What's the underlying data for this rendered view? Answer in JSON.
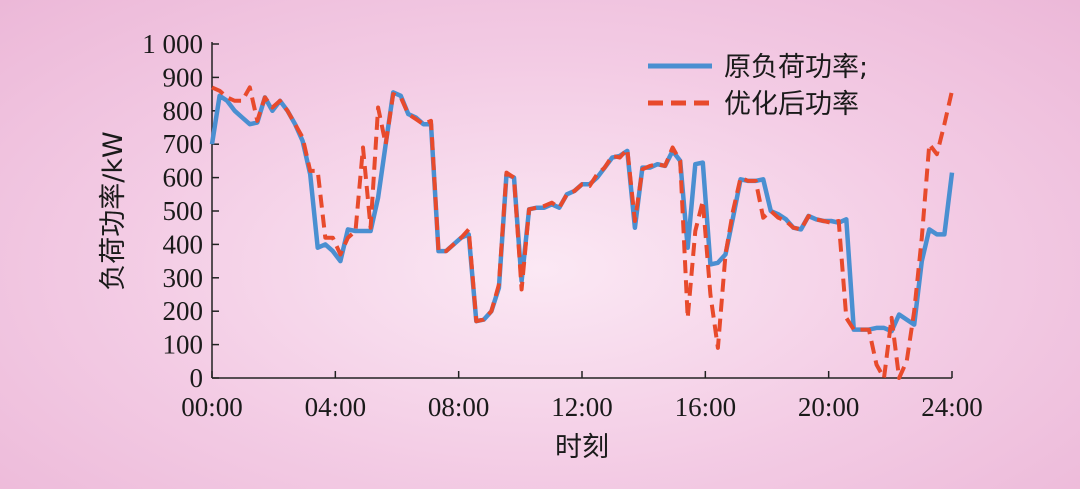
{
  "chart_data": {
    "type": "line",
    "xlabel": "时刻",
    "ylabel": "负荷功率/kW",
    "xlim": [
      0,
      24
    ],
    "ylim": [
      0,
      1000
    ],
    "x_ticks": [
      0,
      4,
      8,
      12,
      16,
      20,
      24
    ],
    "x_tick_labels": [
      "00:00",
      "04:00",
      "08:00",
      "12:00",
      "16:00",
      "20:00",
      "24:00"
    ],
    "y_ticks": [
      0,
      100,
      200,
      300,
      400,
      500,
      600,
      700,
      800,
      900,
      1000
    ],
    "y_tick_labels": [
      "0",
      "100",
      "200",
      "300",
      "400",
      "500",
      "600",
      "700",
      "800",
      "900",
      "1 000"
    ],
    "grid": false,
    "legend_position": "top-right",
    "series": [
      {
        "name": "原负荷功率;",
        "color": "#4a8fd1",
        "style": "solid",
        "points": [
          [
            0.0,
            700
          ],
          [
            0.25,
            845
          ],
          [
            0.5,
            830
          ],
          [
            0.75,
            800
          ],
          [
            1.0,
            780
          ],
          [
            1.25,
            760
          ],
          [
            1.5,
            765
          ],
          [
            1.75,
            840
          ],
          [
            2.0,
            800
          ],
          [
            2.25,
            830
          ],
          [
            2.5,
            800
          ],
          [
            2.75,
            760
          ],
          [
            3.0,
            710
          ],
          [
            3.25,
            610
          ],
          [
            3.5,
            390
          ],
          [
            3.75,
            400
          ],
          [
            4.0,
            380
          ],
          [
            4.25,
            350
          ],
          [
            4.5,
            445
          ],
          [
            4.75,
            440
          ],
          [
            5.0,
            440
          ],
          [
            5.25,
            440
          ],
          [
            5.5,
            540
          ],
          [
            5.75,
            700
          ],
          [
            6.0,
            855
          ],
          [
            6.25,
            845
          ],
          [
            6.5,
            790
          ],
          [
            6.75,
            780
          ],
          [
            7.0,
            760
          ],
          [
            7.25,
            760
          ],
          [
            7.5,
            380
          ],
          [
            7.75,
            380
          ],
          [
            8.0,
            400
          ],
          [
            8.25,
            420
          ],
          [
            8.5,
            430
          ],
          [
            8.75,
            170
          ],
          [
            9.0,
            175
          ],
          [
            9.25,
            200
          ],
          [
            9.5,
            270
          ],
          [
            9.75,
            610
          ],
          [
            10.0,
            600
          ],
          [
            10.25,
            290
          ],
          [
            10.5,
            505
          ],
          [
            10.75,
            510
          ],
          [
            11.0,
            510
          ],
          [
            11.25,
            520
          ],
          [
            11.5,
            510
          ],
          [
            11.75,
            550
          ],
          [
            12.0,
            560
          ],
          [
            12.25,
            580
          ],
          [
            12.5,
            580
          ],
          [
            12.75,
            600
          ],
          [
            13.0,
            630
          ],
          [
            13.25,
            660
          ],
          [
            13.5,
            665
          ],
          [
            13.75,
            680
          ],
          [
            14.0,
            450
          ],
          [
            14.25,
            630
          ],
          [
            14.5,
            630
          ],
          [
            14.75,
            640
          ],
          [
            15.0,
            635
          ],
          [
            15.25,
            680
          ],
          [
            15.5,
            650
          ],
          [
            15.75,
            390
          ],
          [
            16.0,
            640
          ],
          [
            16.25,
            645
          ],
          [
            16.5,
            340
          ],
          [
            16.75,
            345
          ],
          [
            17.0,
            370
          ],
          [
            17.25,
            480
          ],
          [
            17.5,
            595
          ],
          [
            17.75,
            590
          ],
          [
            18.0,
            590
          ],
          [
            18.25,
            595
          ],
          [
            18.5,
            500
          ],
          [
            18.75,
            490
          ],
          [
            19.0,
            475
          ],
          [
            19.25,
            450
          ],
          [
            19.5,
            445
          ],
          [
            19.75,
            485
          ],
          [
            20.0,
            475
          ],
          [
            20.25,
            470
          ],
          [
            20.5,
            470
          ],
          [
            20.75,
            465
          ],
          [
            21.0,
            475
          ],
          [
            21.25,
            145
          ],
          [
            21.5,
            145
          ],
          [
            21.75,
            145
          ],
          [
            22.0,
            150
          ],
          [
            22.25,
            150
          ],
          [
            22.5,
            140
          ],
          [
            22.75,
            190
          ],
          [
            23.0,
            175
          ],
          [
            23.25,
            160
          ],
          [
            23.5,
            350
          ],
          [
            23.75,
            445
          ],
          [
            24.0,
            430
          ],
          [
            24.25,
            430
          ],
          [
            24.5,
            615
          ]
        ]
      },
      {
        "name": "优化后功率",
        "color": "#e84a2c",
        "style": "dashed",
        "points": [
          [
            0.0,
            870
          ],
          [
            0.25,
            860
          ],
          [
            0.5,
            840
          ],
          [
            0.75,
            830
          ],
          [
            1.0,
            830
          ],
          [
            1.25,
            870
          ],
          [
            1.5,
            770
          ],
          [
            1.75,
            840
          ],
          [
            2.0,
            810
          ],
          [
            2.25,
            830
          ],
          [
            2.5,
            800
          ],
          [
            2.75,
            760
          ],
          [
            3.0,
            720
          ],
          [
            3.25,
            620
          ],
          [
            3.5,
            620
          ],
          [
            3.75,
            420
          ],
          [
            4.0,
            420
          ],
          [
            4.25,
            370
          ],
          [
            4.5,
            420
          ],
          [
            4.75,
            440
          ],
          [
            5.0,
            690
          ],
          [
            5.25,
            450
          ],
          [
            5.5,
            810
          ],
          [
            5.75,
            700
          ],
          [
            6.0,
            850
          ],
          [
            6.25,
            840
          ],
          [
            6.5,
            790
          ],
          [
            6.75,
            775
          ],
          [
            7.0,
            760
          ],
          [
            7.25,
            770
          ],
          [
            7.5,
            380
          ],
          [
            7.75,
            380
          ],
          [
            8.0,
            400
          ],
          [
            8.25,
            420
          ],
          [
            8.5,
            445
          ],
          [
            8.75,
            170
          ],
          [
            9.0,
            175
          ],
          [
            9.25,
            200
          ],
          [
            9.5,
            280
          ],
          [
            9.75,
            615
          ],
          [
            10.0,
            600
          ],
          [
            10.25,
            265
          ],
          [
            10.5,
            505
          ],
          [
            10.75,
            510
          ],
          [
            11.0,
            515
          ],
          [
            11.25,
            525
          ],
          [
            11.5,
            510
          ],
          [
            11.75,
            550
          ],
          [
            12.0,
            560
          ],
          [
            12.25,
            580
          ],
          [
            12.5,
            575
          ],
          [
            12.75,
            610
          ],
          [
            13.0,
            630
          ],
          [
            13.25,
            665
          ],
          [
            13.5,
            660
          ],
          [
            13.75,
            685
          ],
          [
            14.0,
            470
          ],
          [
            14.25,
            625
          ],
          [
            14.5,
            635
          ],
          [
            14.75,
            640
          ],
          [
            15.0,
            635
          ],
          [
            15.25,
            690
          ],
          [
            15.5,
            650
          ],
          [
            15.75,
            180
          ],
          [
            16.0,
            440
          ],
          [
            16.25,
            530
          ],
          [
            16.5,
            250
          ],
          [
            16.75,
            90
          ],
          [
            17.0,
            370
          ],
          [
            17.25,
            500
          ],
          [
            17.5,
            600
          ],
          [
            17.75,
            590
          ],
          [
            18.0,
            590
          ],
          [
            18.25,
            480
          ],
          [
            18.5,
            500
          ],
          [
            18.75,
            480
          ],
          [
            19.0,
            470
          ],
          [
            19.25,
            450
          ],
          [
            19.5,
            445
          ],
          [
            19.75,
            485
          ],
          [
            20.0,
            475
          ],
          [
            20.25,
            470
          ],
          [
            20.5,
            465
          ],
          [
            20.75,
            470
          ],
          [
            21.0,
            180
          ],
          [
            21.25,
            145
          ],
          [
            21.5,
            145
          ],
          [
            21.75,
            145
          ],
          [
            22.0,
            40
          ],
          [
            22.25,
            0
          ],
          [
            22.5,
            180
          ],
          [
            22.75,
            0
          ],
          [
            23.0,
            50
          ],
          [
            23.25,
            200
          ],
          [
            23.5,
            420
          ],
          [
            23.75,
            700
          ],
          [
            24.0,
            670
          ],
          [
            24.25,
            760
          ],
          [
            24.5,
            860
          ]
        ]
      }
    ]
  }
}
